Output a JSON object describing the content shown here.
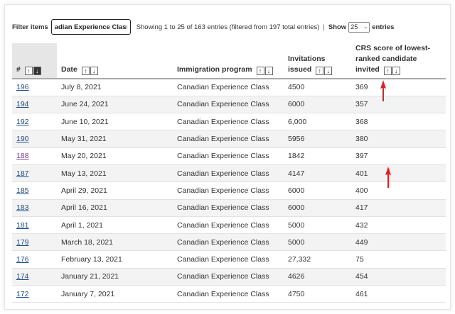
{
  "toolbar": {
    "filter_label": "Filter items",
    "filter_value": "adian Experience Class",
    "showing_text": "Showing 1 to 25 of 163 entries (filtered from 197 total entries)",
    "separator": "|",
    "show_label": "Show",
    "show_value": "25",
    "entries_label": "entries"
  },
  "table": {
    "headers": {
      "num": "#",
      "date": "Date",
      "program": "Immigration program",
      "invitations": "Invitations issued",
      "crs": "CRS score of lowest-ranked candidate invited"
    },
    "sort_up": "↑",
    "sort_down": "↓",
    "rows": [
      {
        "num": "196",
        "date": "July 8, 2021",
        "program": "Canadian Experience Class",
        "invitations": "4500",
        "crs": "369"
      },
      {
        "num": "194",
        "date": "June 24, 2021",
        "program": "Canadian Experience Class",
        "invitations": "6000",
        "crs": "357"
      },
      {
        "num": "192",
        "date": "June 10, 2021",
        "program": "Canadian Experience Class",
        "invitations": "6,000",
        "crs": "368"
      },
      {
        "num": "190",
        "date": "May 31, 2021",
        "program": "Canadian Experience Class",
        "invitations": "5956",
        "crs": "380"
      },
      {
        "num": "188",
        "date": "May 20, 2021",
        "program": "Canadian Experience Class",
        "invitations": "1842",
        "crs": "397"
      },
      {
        "num": "187",
        "date": "May 13, 2021",
        "program": "Canadian Experience Class",
        "invitations": "4147",
        "crs": "401"
      },
      {
        "num": "185",
        "date": "April 29, 2021",
        "program": "Canadian Experience Class",
        "invitations": "6000",
        "crs": "400"
      },
      {
        "num": "183",
        "date": "April 16, 2021",
        "program": "Canadian Experience Class",
        "invitations": "6000",
        "crs": "417"
      },
      {
        "num": "181",
        "date": "April 1, 2021",
        "program": "Canadian Experience Class",
        "invitations": "5000",
        "crs": "432"
      },
      {
        "num": "179",
        "date": "March 18, 2021",
        "program": "Canadian Experience Class",
        "invitations": "5000",
        "crs": "449"
      },
      {
        "num": "176",
        "date": "February 13, 2021",
        "program": "Canadian Experience Class",
        "invitations": "27,332",
        "crs": "75"
      },
      {
        "num": "174",
        "date": "January 21, 2021",
        "program": "Canadian Experience Class",
        "invitations": "4626",
        "crs": "454"
      },
      {
        "num": "172",
        "date": "January 7, 2021",
        "program": "Canadian Experience Class",
        "invitations": "4750",
        "crs": "461"
      }
    ]
  },
  "colors": {
    "link": "#1a4c8a",
    "visited_link": "#7a3d9c",
    "annotation_arrow": "#e02020"
  },
  "annotations": [
    "red-arrow-up",
    "red-arrow-up"
  ]
}
